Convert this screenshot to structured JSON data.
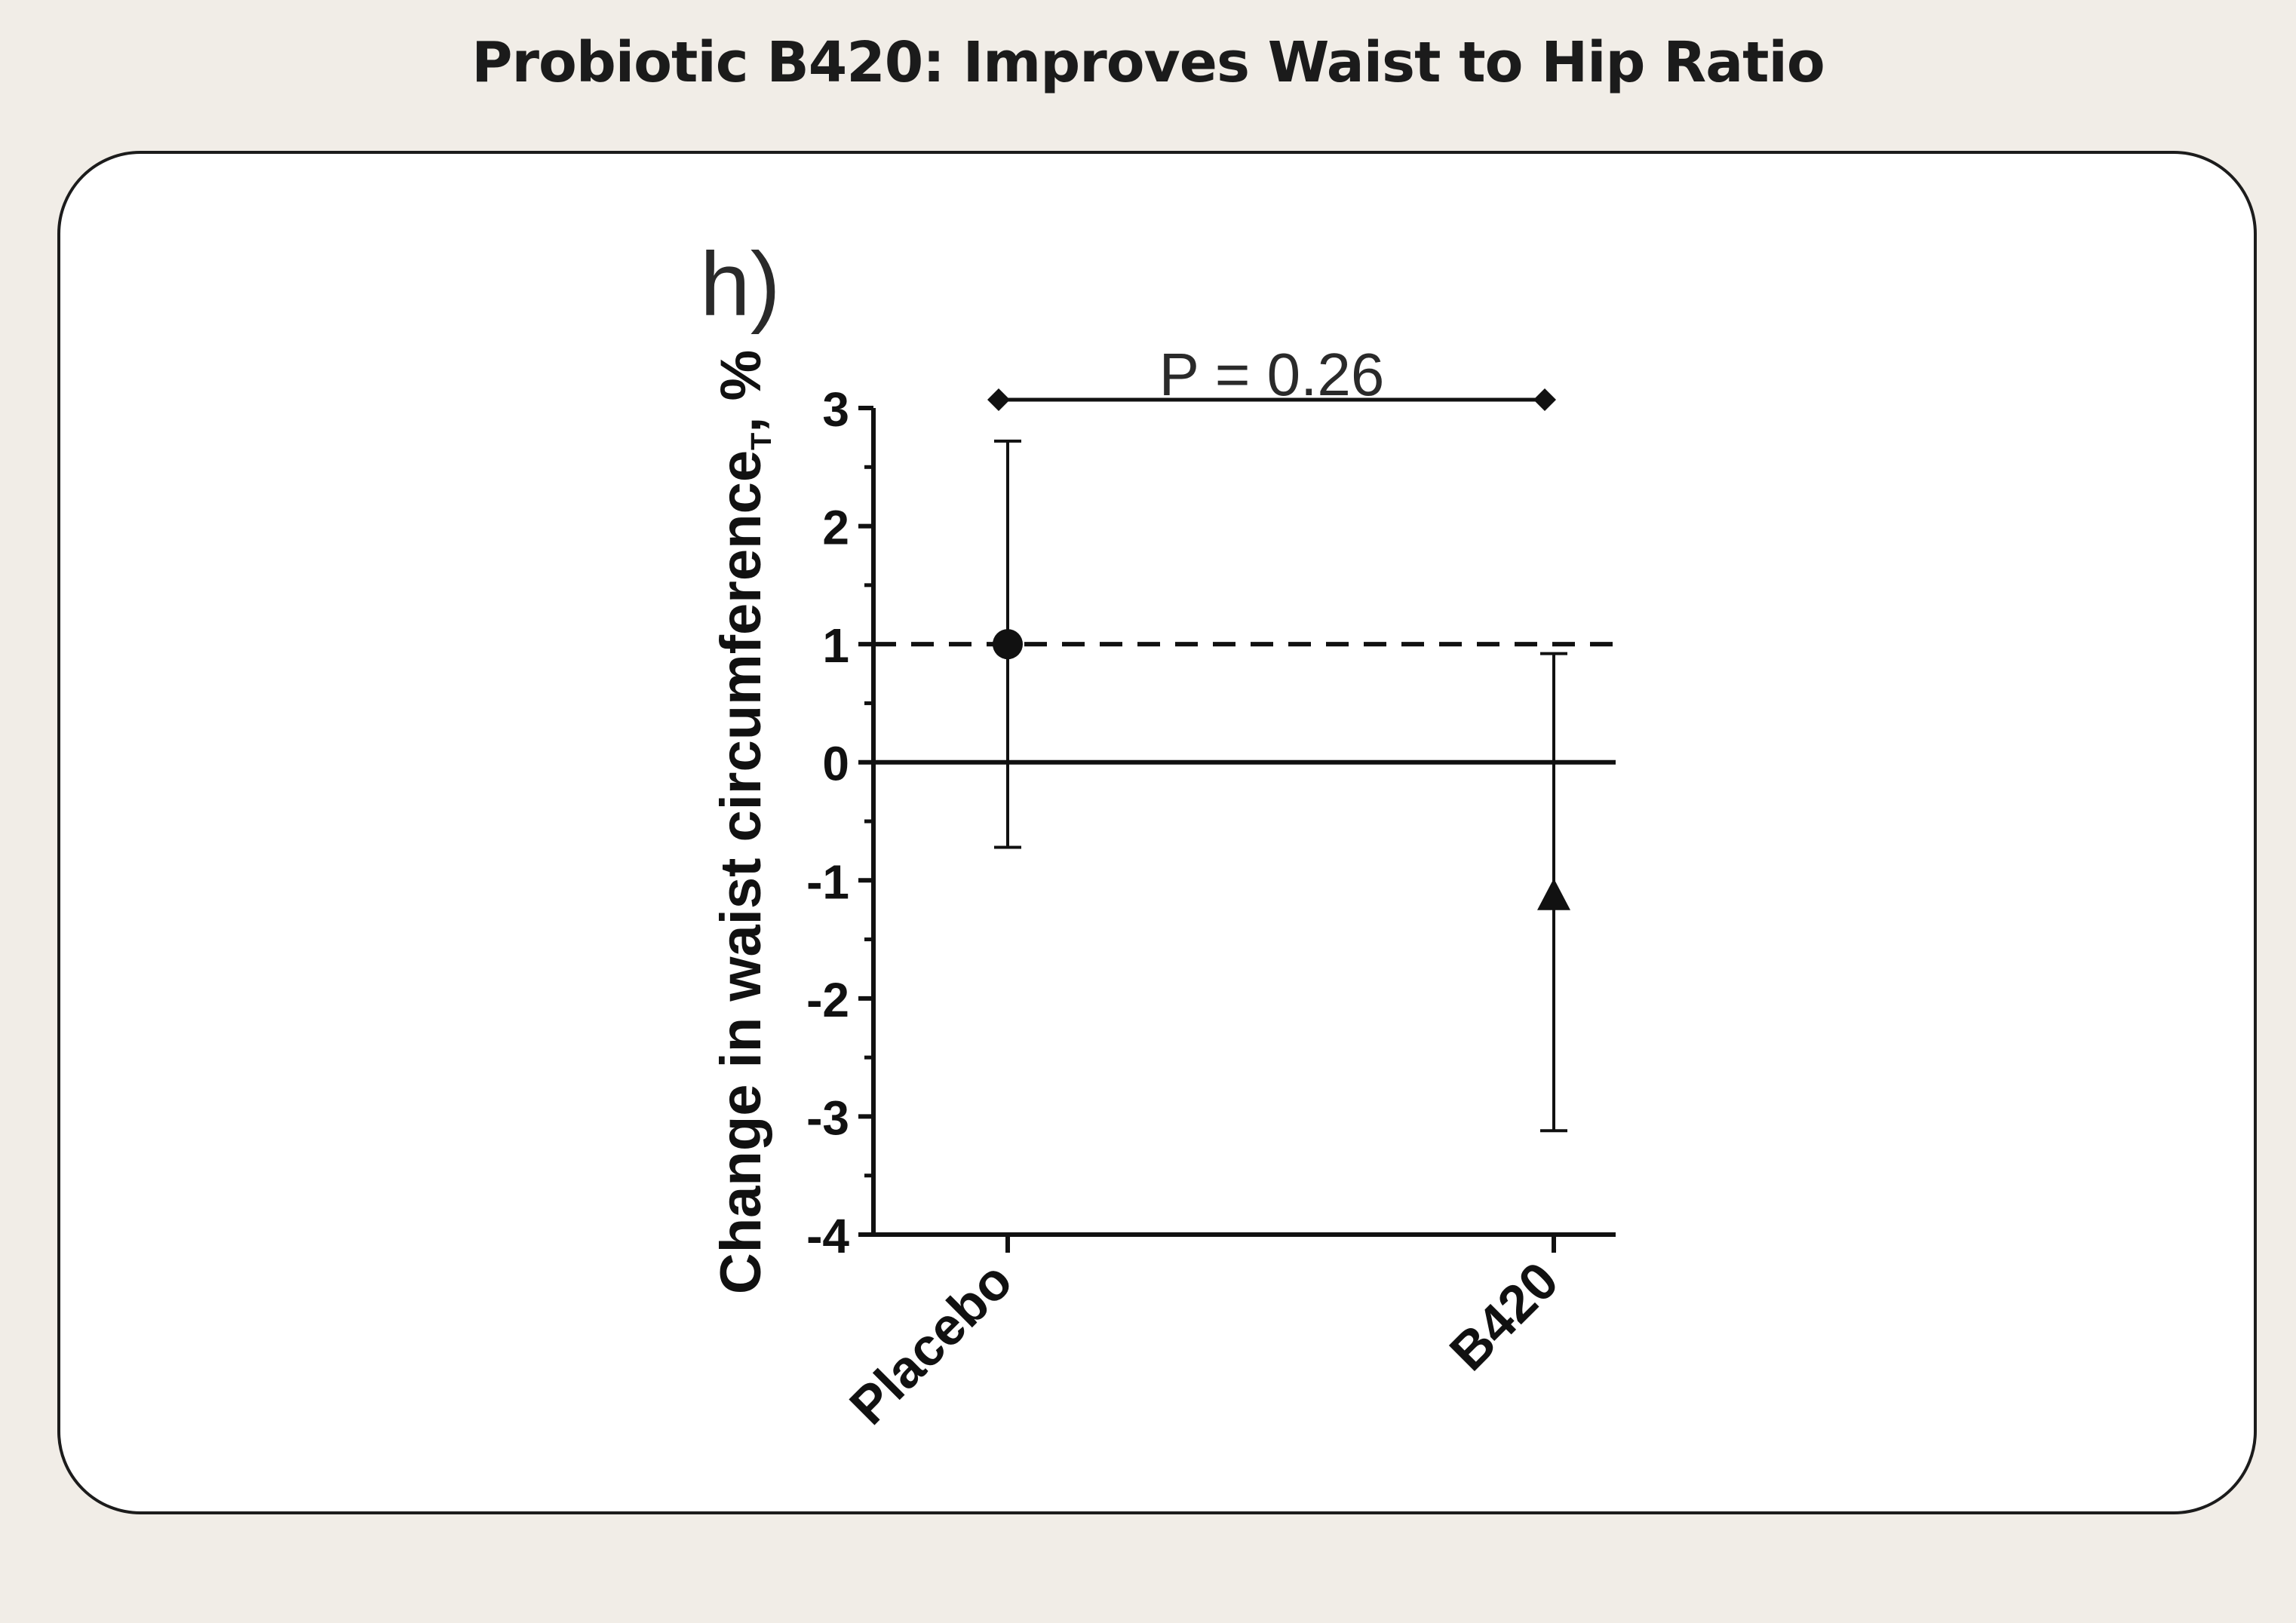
{
  "header": {
    "title": "Probiotic B420: Improves Waist to Hip Ratio"
  },
  "chart_data": {
    "type": "scatter",
    "panel_label": "h)",
    "ylabel": "Change in waist circumference",
    "ylabel_subscript": "T",
    "ylabel_unit": ", %",
    "xlabel": "",
    "categories": [
      "Placebo",
      "B420"
    ],
    "ylim": [
      -4,
      3
    ],
    "yticks": [
      "3",
      "2",
      "1",
      "0",
      "-1",
      "-2",
      "-3",
      "-4"
    ],
    "series": [
      {
        "category": "Placebo",
        "marker": "circle",
        "mean": 1.0,
        "err_low": -0.72,
        "err_high": 2.72
      },
      {
        "category": "B420",
        "marker": "triangle",
        "mean": -1.15,
        "err_low": -3.12,
        "err_high": 0.92
      }
    ],
    "reference_lines": [
      {
        "y": 1,
        "style": "dashed"
      },
      {
        "y": 0,
        "style": "solid"
      }
    ],
    "significance": {
      "label": "P = 0.26",
      "y": 3.07,
      "from": "Placebo",
      "to": "B420"
    }
  }
}
